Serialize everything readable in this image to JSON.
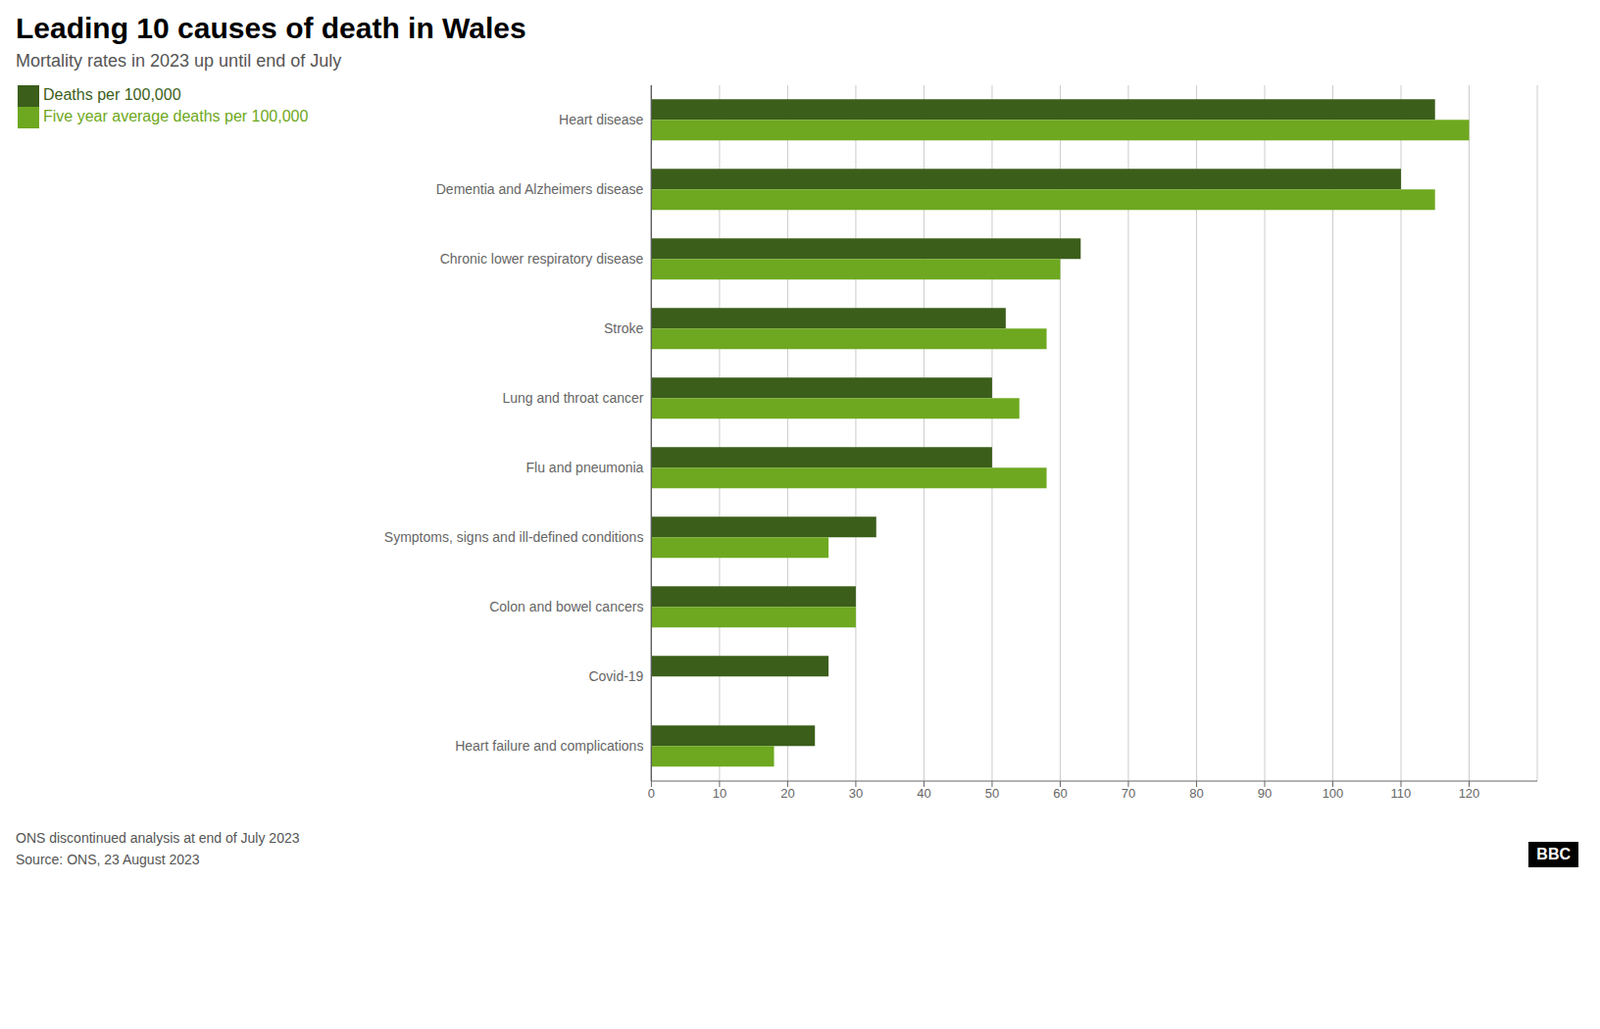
{
  "chart_data": {
    "type": "bar",
    "orientation": "horizontal",
    "title": "Leading 10 causes of death in Wales",
    "subtitle": "Mortality rates in 2023 up until end of July",
    "annotations": [
      "ONS discontinued analysis at end of July 2023",
      "Source: ONS, 23 August 2023",
      "BBC"
    ],
    "categories": [
      "Heart disease",
      "Dementia and Alzheimers disease",
      "Chronic lower respiratory disease",
      "Stroke",
      "Lung and throat cancer",
      "Flu and pneumonia",
      "Symptoms, signs and ill-defined conditions",
      "Colon and bowel cancers",
      "Covid-19",
      "Heart failure and complications"
    ],
    "series": [
      {
        "name": "Deaths per 100,000",
        "color": "#3b5e1a",
        "values": [
          115,
          110,
          63,
          52,
          50,
          50,
          33,
          30,
          26,
          24
        ]
      },
      {
        "name": "Five year average deaths per 100,000",
        "color": "#6ea820",
        "values": [
          120,
          115,
          60,
          58,
          54,
          58,
          26,
          30,
          0,
          18
        ]
      }
    ],
    "xlim": [
      0,
      130
    ],
    "xticks": [
      0,
      10,
      20,
      30,
      40,
      50,
      60,
      70,
      80,
      90,
      100,
      110,
      120
    ],
    "grid": true,
    "legend": "upper left"
  }
}
